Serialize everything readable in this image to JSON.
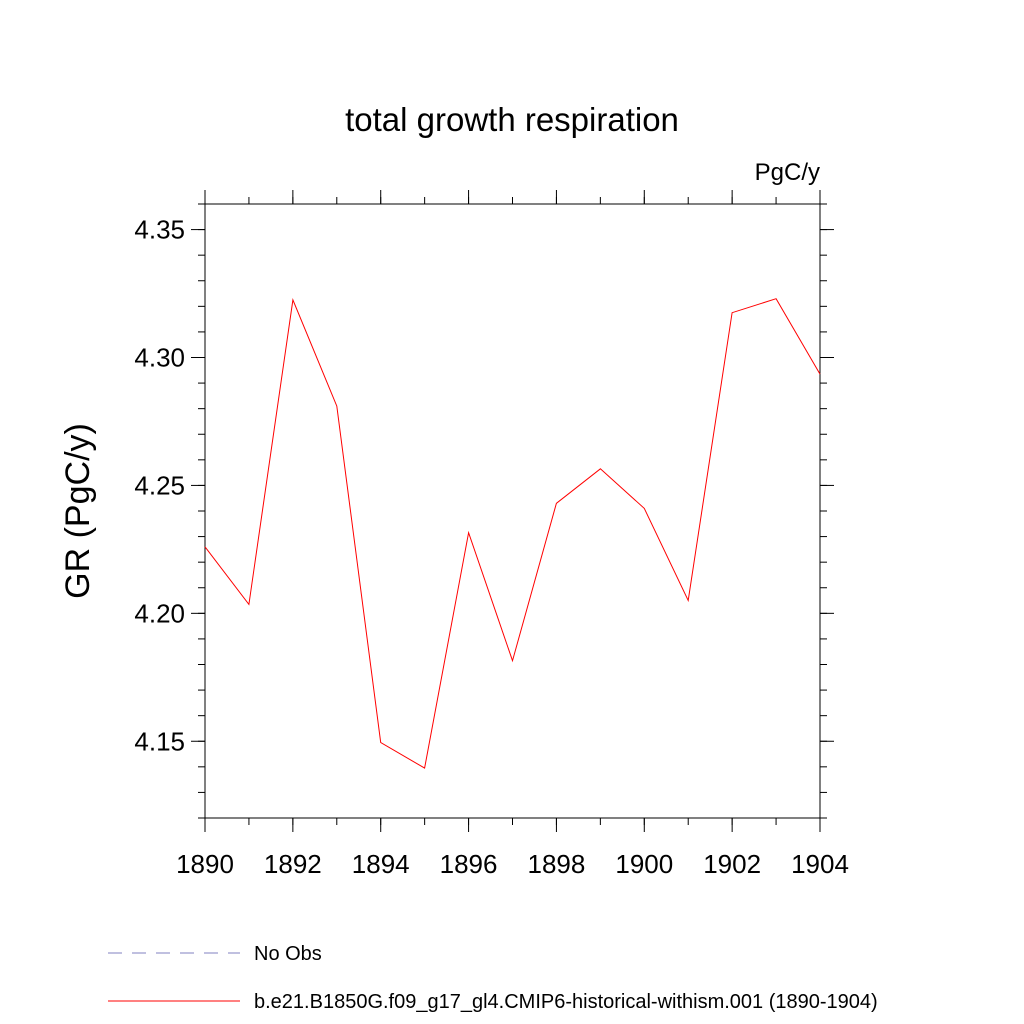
{
  "chart_data": {
    "type": "line",
    "title": "total growth respiration",
    "units_label": "PgC/y",
    "ylabel": "GR  (PgC/y)",
    "xlabel": "",
    "xlim": [
      1890,
      1904
    ],
    "ylim": [
      4.12,
      4.36
    ],
    "x_ticks": [
      1890,
      1892,
      1894,
      1896,
      1898,
      1900,
      1902,
      1904
    ],
    "x_tick_labels": [
      "1890",
      "1892",
      "1894",
      "1896",
      "1898",
      "1900",
      "1902",
      "1904"
    ],
    "y_ticks": [
      4.15,
      4.2,
      4.25,
      4.3,
      4.35
    ],
    "y_tick_labels": [
      "4.15",
      "4.20",
      "4.25",
      "4.30",
      "4.35"
    ],
    "y_minor_step": 0.01,
    "x_minor_step": 1,
    "grid": false,
    "legend_position": "bottom",
    "series": [
      {
        "name": "b.e21.B1850G.f09_g17_gl4.CMIP6-historical-withism.001 (1890-1904)",
        "color": "#ff0000",
        "dash": "solid",
        "x": [
          1890,
          1891,
          1892,
          1893,
          1894,
          1895,
          1896,
          1897,
          1898,
          1899,
          1900,
          1901,
          1902,
          1903,
          1904
        ],
        "y": [
          4.226,
          4.2035,
          4.3225,
          4.281,
          4.1495,
          4.1395,
          4.2315,
          4.1815,
          4.243,
          4.2565,
          4.241,
          4.205,
          4.3175,
          4.323,
          4.2935
        ]
      }
    ],
    "legend": [
      {
        "label": "No Obs",
        "color": "#8080c0",
        "dash": "dashed"
      },
      {
        "label": "b.e21.B1850G.f09_g17_gl4.CMIP6-historical-withism.001 (1890-1904)",
        "color": "#ff0000",
        "dash": "solid"
      }
    ]
  }
}
